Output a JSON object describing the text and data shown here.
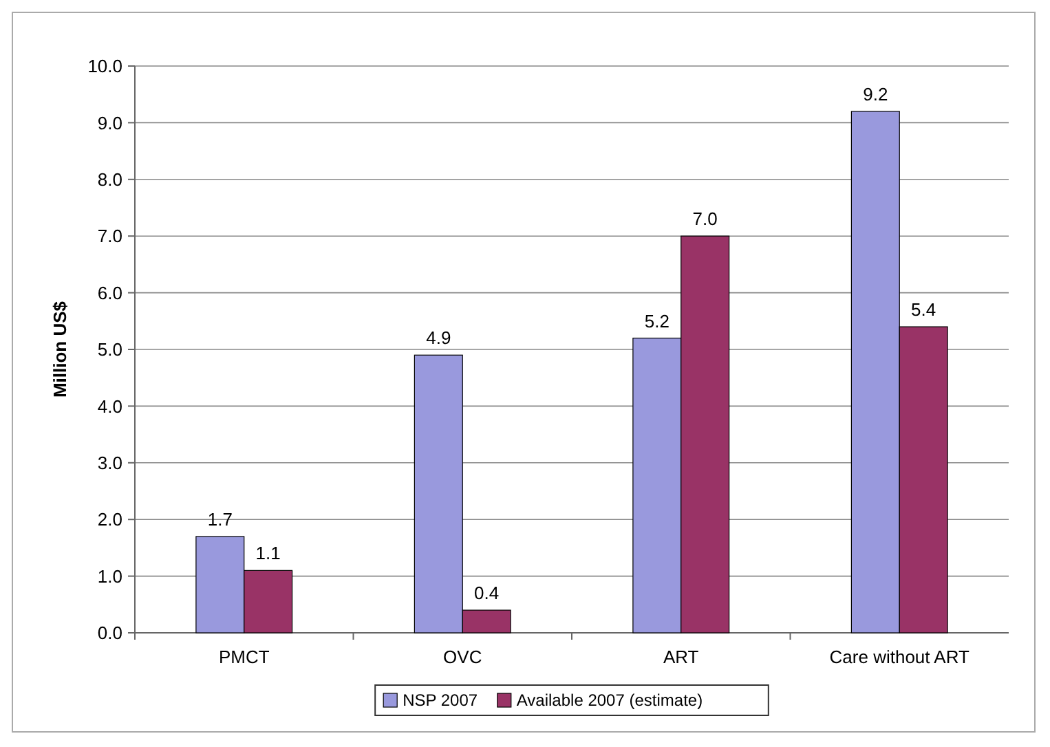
{
  "chart_data": {
    "type": "bar",
    "ylabel": "Million US$",
    "categories": [
      "PMCT",
      "OVC",
      "ART",
      "Care without ART"
    ],
    "series": [
      {
        "name": "NSP 2007",
        "color": "#9999dd",
        "values": [
          1.7,
          4.9,
          5.2,
          9.2
        ],
        "value_labels": [
          "1.7",
          "4.9",
          "5.2",
          "9.2"
        ]
      },
      {
        "name": "Available 2007 (estimate)",
        "color": "#993366",
        "values": [
          1.1,
          0.4,
          7.0,
          5.4
        ],
        "value_labels": [
          "1.1",
          "0.4",
          "7.0",
          "5.4"
        ]
      }
    ],
    "ylim": [
      0,
      10
    ],
    "yticks": [
      {
        "value": 0,
        "label": "0.0"
      },
      {
        "value": 1,
        "label": "1.0"
      },
      {
        "value": 2,
        "label": "2.0"
      },
      {
        "value": 3,
        "label": "3.0"
      },
      {
        "value": 4,
        "label": "4.0"
      },
      {
        "value": 5,
        "label": "5.0"
      },
      {
        "value": 6,
        "label": "6.0"
      },
      {
        "value": 7,
        "label": "7.0"
      },
      {
        "value": 8,
        "label": "8.0"
      },
      {
        "value": 9,
        "label": "9.0"
      },
      {
        "value": 10,
        "label": "10.0"
      }
    ],
    "grid": "y",
    "legend": "bottom"
  }
}
